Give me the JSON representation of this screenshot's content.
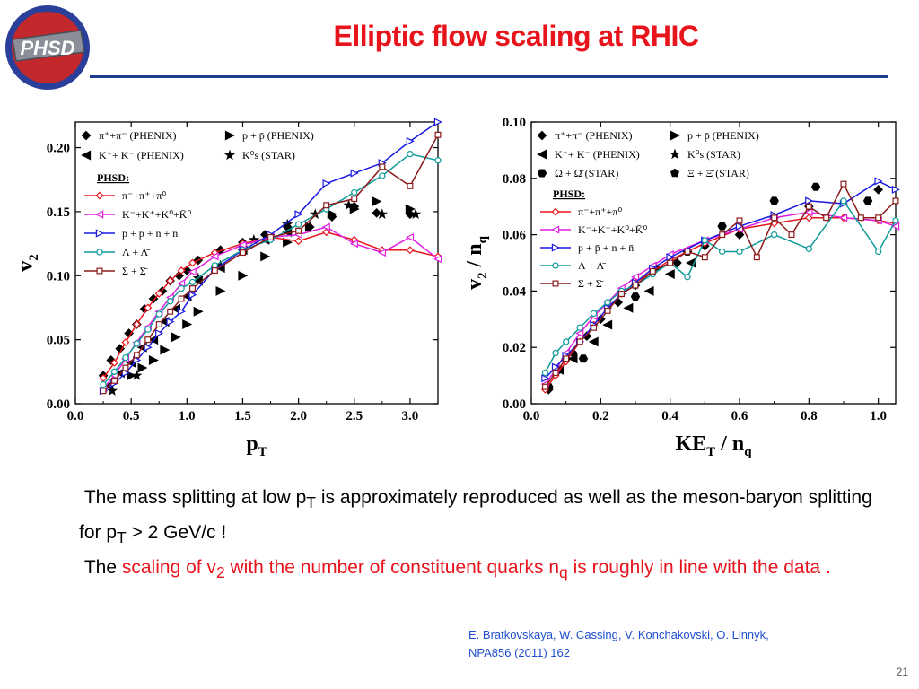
{
  "slide": {
    "logo_text": "PHSD",
    "title": "Elliptic flow scaling at RHIC",
    "body": {
      "p1_a": "The mass splitting at low p",
      "p1_sub1": "T",
      "p1_b": " is approximately reproduced as well as the meson-baryon splitting for p",
      "p1_sub2": "T",
      "p1_c": " > 2 GeV/c !",
      "p2_a": "The ",
      "p2_red1": "scaling of v",
      "p2_sub1": "2",
      "p2_red2": " with the number of constituent quarks n",
      "p2_sub2": "q",
      "p2_red3": " is roughly in line with the data ."
    },
    "reference_line1": "E. Bratkovskaya,  W. Cassing,  V. Konchakovski,  O. Linnyk,",
    "reference_line2": "NPA856 (2011) 162",
    "slide_number": "21"
  },
  "colors": {
    "title": "#e8141c",
    "rule": "#1f3a8f",
    "reference": "#1f4fd0"
  },
  "chart_data": [
    {
      "type": "scatter",
      "xlabel": "p_T",
      "ylabel": "v_2",
      "xlim": [
        0.0,
        3.25
      ],
      "ylim": [
        0.0,
        0.22
      ],
      "xticks": [
        "0.0",
        "0.5",
        "1.0",
        "1.5",
        "2.0",
        "2.5",
        "3.0"
      ],
      "yticks": [
        "0.00",
        "0.05",
        "0.10",
        "0.15",
        "0.20"
      ],
      "legend_data": [
        {
          "label": "π⁺+π⁻ (PHENIX)",
          "marker": "diamond"
        },
        {
          "label": "p + p̄ (PHENIX)",
          "marker": "tri-right"
        },
        {
          "label": "K⁺+ K⁻ (PHENIX)",
          "marker": "tri-left"
        },
        {
          "label": "K⁰s (STAR)",
          "marker": "star"
        }
      ],
      "legend_title": "PHSD:",
      "series": [
        {
          "name": "π⁻+π⁺+π⁰",
          "color": "#e8141c",
          "marker": "diamond",
          "x": [
            0.25,
            0.35,
            0.45,
            0.55,
            0.65,
            0.75,
            0.85,
            0.95,
            1.05,
            1.25,
            1.5,
            1.75,
            2.0,
            2.25,
            2.5,
            2.75,
            3.0,
            3.25
          ],
          "y": [
            0.02,
            0.032,
            0.048,
            0.062,
            0.075,
            0.086,
            0.096,
            0.104,
            0.11,
            0.118,
            0.125,
            0.13,
            0.127,
            0.134,
            0.128,
            0.12,
            0.12,
            0.115
          ]
        },
        {
          "name": "K⁻+K⁺+K⁰+K̄⁰",
          "color": "#e020e0",
          "marker": "tri-left",
          "x": [
            0.25,
            0.35,
            0.45,
            0.55,
            0.65,
            0.75,
            0.85,
            0.95,
            1.05,
            1.25,
            1.5,
            1.75,
            2.0,
            2.25,
            2.5,
            2.75,
            3.0,
            3.25
          ],
          "y": [
            0.012,
            0.022,
            0.035,
            0.048,
            0.06,
            0.072,
            0.083,
            0.094,
            0.103,
            0.115,
            0.124,
            0.13,
            0.132,
            0.138,
            0.125,
            0.118,
            0.13,
            0.113
          ]
        },
        {
          "name": "p + p̄ + n + n̄",
          "color": "#1a1ae0",
          "marker": "tri-right",
          "x": [
            0.25,
            0.35,
            0.45,
            0.55,
            0.65,
            0.75,
            0.85,
            0.95,
            1.05,
            1.25,
            1.5,
            1.75,
            2.0,
            2.25,
            2.5,
            2.75,
            3.0,
            3.25
          ],
          "y": [
            0.01,
            0.016,
            0.024,
            0.034,
            0.044,
            0.055,
            0.064,
            0.072,
            0.085,
            0.105,
            0.12,
            0.132,
            0.148,
            0.172,
            0.18,
            0.188,
            0.205,
            0.22
          ]
        },
        {
          "name": "Λ + Λ̄",
          "color": "#109a9a",
          "marker": "circle",
          "x": [
            0.25,
            0.35,
            0.45,
            0.55,
            0.65,
            0.75,
            0.85,
            0.95,
            1.05,
            1.25,
            1.5,
            1.75,
            2.0,
            2.25,
            2.5,
            2.75,
            3.0,
            3.25
          ],
          "y": [
            0.015,
            0.025,
            0.036,
            0.047,
            0.058,
            0.07,
            0.08,
            0.09,
            0.095,
            0.108,
            0.12,
            0.128,
            0.14,
            0.152,
            0.165,
            0.178,
            0.195,
            0.19
          ]
        },
        {
          "name": "Σ + Σ̄",
          "color": "#8b1a1a",
          "marker": "square",
          "x": [
            0.25,
            0.35,
            0.45,
            0.55,
            0.65,
            0.75,
            0.85,
            0.95,
            1.05,
            1.25,
            1.5,
            1.75,
            2.0,
            2.25,
            2.5,
            2.75,
            3.0,
            3.25
          ],
          "y": [
            0.01,
            0.018,
            0.028,
            0.038,
            0.05,
            0.062,
            0.072,
            0.082,
            0.09,
            0.104,
            0.118,
            0.13,
            0.135,
            0.155,
            0.16,
            0.185,
            0.17,
            0.21
          ]
        }
      ],
      "data_points": [
        {
          "marker": "diamond",
          "x": [
            0.25,
            0.32,
            0.4,
            0.48,
            0.55,
            0.62,
            0.7,
            0.78,
            0.85,
            0.93,
            1.0,
            1.1,
            1.3,
            1.5,
            1.7,
            1.9,
            2.1,
            2.3,
            2.5,
            2.7,
            3.0
          ],
          "y": [
            0.022,
            0.034,
            0.043,
            0.055,
            0.062,
            0.074,
            0.082,
            0.088,
            0.096,
            0.1,
            0.104,
            0.112,
            0.12,
            0.126,
            0.132,
            0.138,
            0.138,
            0.146,
            0.154,
            0.149,
            0.148
          ]
        },
        {
          "marker": "tri-right",
          "x": [
            0.5,
            0.6,
            0.7,
            0.8,
            0.9,
            1.0,
            1.1,
            1.3,
            1.5,
            1.7,
            1.9,
            2.1,
            2.3,
            2.5,
            2.7,
            3.0
          ],
          "y": [
            0.022,
            0.028,
            0.034,
            0.042,
            0.052,
            0.062,
            0.072,
            0.088,
            0.1,
            0.115,
            0.126,
            0.138,
            0.148,
            0.152,
            0.158,
            0.152
          ]
        },
        {
          "marker": "tri-left",
          "x": [
            0.3,
            0.4,
            0.5,
            0.6,
            0.7,
            0.8,
            0.9,
            1.0,
            1.1,
            1.3,
            1.5,
            1.7,
            1.9
          ],
          "y": [
            0.014,
            0.024,
            0.032,
            0.044,
            0.05,
            0.064,
            0.074,
            0.084,
            0.096,
            0.106,
            0.12,
            0.128,
            0.134
          ]
        },
        {
          "marker": "star",
          "x": [
            0.33,
            0.55,
            1.1,
            1.3,
            1.6,
            1.9,
            2.15,
            2.45,
            2.75,
            3.05
          ],
          "y": [
            0.01,
            0.022,
            0.098,
            0.108,
            0.128,
            0.14,
            0.148,
            0.155,
            0.148,
            0.148
          ]
        }
      ]
    },
    {
      "type": "scatter",
      "xlabel": "KE_T / n_q",
      "ylabel": "v_2 / n_q",
      "xlim": [
        0.0,
        1.05
      ],
      "ylim": [
        0.0,
        0.1
      ],
      "xticks": [
        "0.0",
        "0.2",
        "0.4",
        "0.6",
        "0.8",
        "1.0"
      ],
      "yticks": [
        "0.00",
        "0.02",
        "0.04",
        "0.06",
        "0.08",
        "0.10"
      ],
      "legend_data": [
        {
          "label": "π⁺+π⁻ (PHENIX)",
          "marker": "diamond"
        },
        {
          "label": "p + p̄ (PHENIX)",
          "marker": "tri-right"
        },
        {
          "label": "K⁺+ K⁻ (PHENIX)",
          "marker": "tri-left"
        },
        {
          "label": "K⁰s (STAR)",
          "marker": "star"
        },
        {
          "label": "Ω + Ω̄ (STAR)",
          "marker": "hexagon"
        },
        {
          "label": "Ξ + Ξ̄ (STAR)",
          "marker": "pentagon"
        }
      ],
      "legend_title": "PHSD:",
      "series": [
        {
          "name": "π⁻+π⁺+π⁰",
          "color": "#e8141c",
          "marker": "diamond",
          "x": [
            0.04,
            0.07,
            0.1,
            0.14,
            0.18,
            0.22,
            0.26,
            0.3,
            0.35,
            0.4,
            0.5,
            0.6,
            0.7,
            0.8,
            0.9,
            1.0,
            1.05
          ],
          "y": [
            0.005,
            0.01,
            0.015,
            0.022,
            0.028,
            0.034,
            0.039,
            0.043,
            0.047,
            0.051,
            0.057,
            0.062,
            0.064,
            0.066,
            0.066,
            0.065,
            0.064
          ]
        },
        {
          "name": "K⁻+K⁺+K⁰+K̄⁰",
          "color": "#e020e0",
          "marker": "tri-left",
          "x": [
            0.04,
            0.07,
            0.1,
            0.14,
            0.18,
            0.22,
            0.26,
            0.3,
            0.35,
            0.4,
            0.5,
            0.6,
            0.7,
            0.8,
            0.9,
            1.0,
            1.05
          ],
          "y": [
            0.007,
            0.012,
            0.018,
            0.025,
            0.031,
            0.036,
            0.041,
            0.045,
            0.049,
            0.053,
            0.058,
            0.062,
            0.066,
            0.068,
            0.066,
            0.065,
            0.063
          ]
        },
        {
          "name": "p + p̄ + n + n̄",
          "color": "#1a1ae0",
          "marker": "tri-right",
          "x": [
            0.04,
            0.07,
            0.1,
            0.14,
            0.18,
            0.22,
            0.26,
            0.3,
            0.35,
            0.4,
            0.5,
            0.6,
            0.7,
            0.8,
            0.9,
            1.0,
            1.05
          ],
          "y": [
            0.009,
            0.013,
            0.017,
            0.022,
            0.028,
            0.034,
            0.039,
            0.043,
            0.048,
            0.052,
            0.058,
            0.063,
            0.067,
            0.072,
            0.071,
            0.079,
            0.076
          ]
        },
        {
          "name": "Λ + Λ̄",
          "color": "#109a9a",
          "marker": "circle",
          "x": [
            0.04,
            0.07,
            0.1,
            0.14,
            0.18,
            0.22,
            0.26,
            0.3,
            0.35,
            0.4,
            0.45,
            0.5,
            0.55,
            0.6,
            0.7,
            0.8,
            0.9,
            1.0,
            1.05
          ],
          "y": [
            0.011,
            0.018,
            0.022,
            0.027,
            0.032,
            0.036,
            0.04,
            0.042,
            0.046,
            0.05,
            0.045,
            0.058,
            0.054,
            0.054,
            0.06,
            0.055,
            0.072,
            0.054,
            0.065
          ]
        },
        {
          "name": "Σ + Σ̄",
          "color": "#8b1a1a",
          "marker": "square",
          "x": [
            0.04,
            0.07,
            0.1,
            0.14,
            0.18,
            0.22,
            0.26,
            0.3,
            0.35,
            0.4,
            0.45,
            0.5,
            0.55,
            0.6,
            0.65,
            0.7,
            0.75,
            0.8,
            0.85,
            0.9,
            0.95,
            1.0,
            1.05
          ],
          "y": [
            0.006,
            0.011,
            0.016,
            0.022,
            0.027,
            0.033,
            0.039,
            0.042,
            0.047,
            0.05,
            0.054,
            0.052,
            0.06,
            0.065,
            0.052,
            0.066,
            0.06,
            0.07,
            0.066,
            0.078,
            0.066,
            0.066,
            0.072
          ]
        }
      ],
      "data_points": [
        {
          "marker": "diamond",
          "x": [
            0.05,
            0.08,
            0.12,
            0.16,
            0.2,
            0.25,
            0.3,
            0.36,
            0.42,
            0.5,
            0.6,
            0.7,
            0.8,
            1.0
          ],
          "y": [
            0.005,
            0.012,
            0.018,
            0.024,
            0.03,
            0.036,
            0.042,
            0.048,
            0.05,
            0.056,
            0.06,
            0.066,
            0.07,
            0.076
          ]
        },
        {
          "marker": "hexagon",
          "x": [
            0.05,
            0.1,
            0.15,
            0.3,
            0.45,
            0.55,
            0.7,
            0.82,
            0.97
          ],
          "y": [
            0.006,
            0.016,
            0.016,
            0.038,
            0.054,
            0.063,
            0.072,
            0.077,
            0.072
          ]
        },
        {
          "marker": "tri-left",
          "x": [
            0.08,
            0.12,
            0.18,
            0.22,
            0.28,
            0.34,
            0.4,
            0.46
          ],
          "y": [
            0.012,
            0.016,
            0.022,
            0.028,
            0.034,
            0.04,
            0.046,
            0.05
          ]
        }
      ]
    }
  ]
}
